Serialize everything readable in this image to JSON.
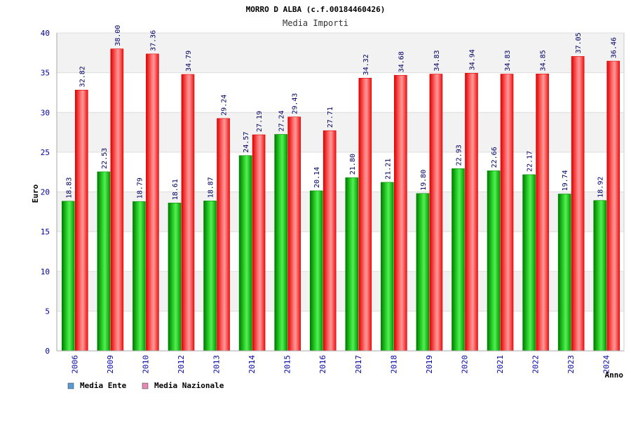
{
  "chart_data": {
    "type": "bar",
    "title": "MORRO D ALBA (c.f.00184460426)",
    "subtitle": "Media Importi",
    "xlabel": "Anno",
    "ylabel": "Euro",
    "ylim": [
      0,
      40
    ],
    "yticks": [
      0,
      5,
      10,
      15,
      20,
      25,
      30,
      35,
      40
    ],
    "categories": [
      "2006",
      "2009",
      "2010",
      "2012",
      "2013",
      "2014",
      "2015",
      "2016",
      "2017",
      "2018",
      "2019",
      "2020",
      "2021",
      "2022",
      "2023",
      "2024"
    ],
    "series": [
      {
        "name": "Media Ente",
        "values": [
          18.83,
          22.53,
          18.79,
          18.61,
          18.87,
          24.57,
          27.24,
          20.14,
          21.8,
          21.21,
          19.8,
          22.93,
          22.66,
          22.17,
          19.74,
          18.92
        ],
        "labels": [
          "18.83",
          "22.53",
          "18.79",
          "18.61",
          "18.87",
          "24.57",
          "27.24",
          "20.14",
          "21.80",
          "21.21",
          "19.80",
          "22.93",
          "22.66",
          "22.17",
          "19.74",
          "18.92"
        ]
      },
      {
        "name": "Media Nazionale",
        "values": [
          32.82,
          38.0,
          37.36,
          34.79,
          29.24,
          27.19,
          29.43,
          27.71,
          34.32,
          34.68,
          34.83,
          34.94,
          34.83,
          34.85,
          37.05,
          36.46
        ],
        "labels": [
          "32.82",
          "38.00",
          "37.36",
          "34.79",
          "29.24",
          "27.19",
          "29.43",
          "27.71",
          "34.32",
          "34.68",
          "34.83",
          "34.94",
          "34.83",
          "34.85",
          "37.05",
          "36.46"
        ]
      }
    ],
    "legend": [
      {
        "label": "Media Ente",
        "color": "#5b9bd5"
      },
      {
        "label": "Media Nazionale",
        "color": "#e38bb4"
      }
    ],
    "grid": true,
    "legend_position": "bottom-left"
  },
  "colors": {
    "ente_light": "#66ee66",
    "ente_dark": "#008800",
    "naz_light": "#ff8888",
    "naz_dark": "#dd0000",
    "tick_text": "#0000aa",
    "band": "#f2f2f2"
  }
}
